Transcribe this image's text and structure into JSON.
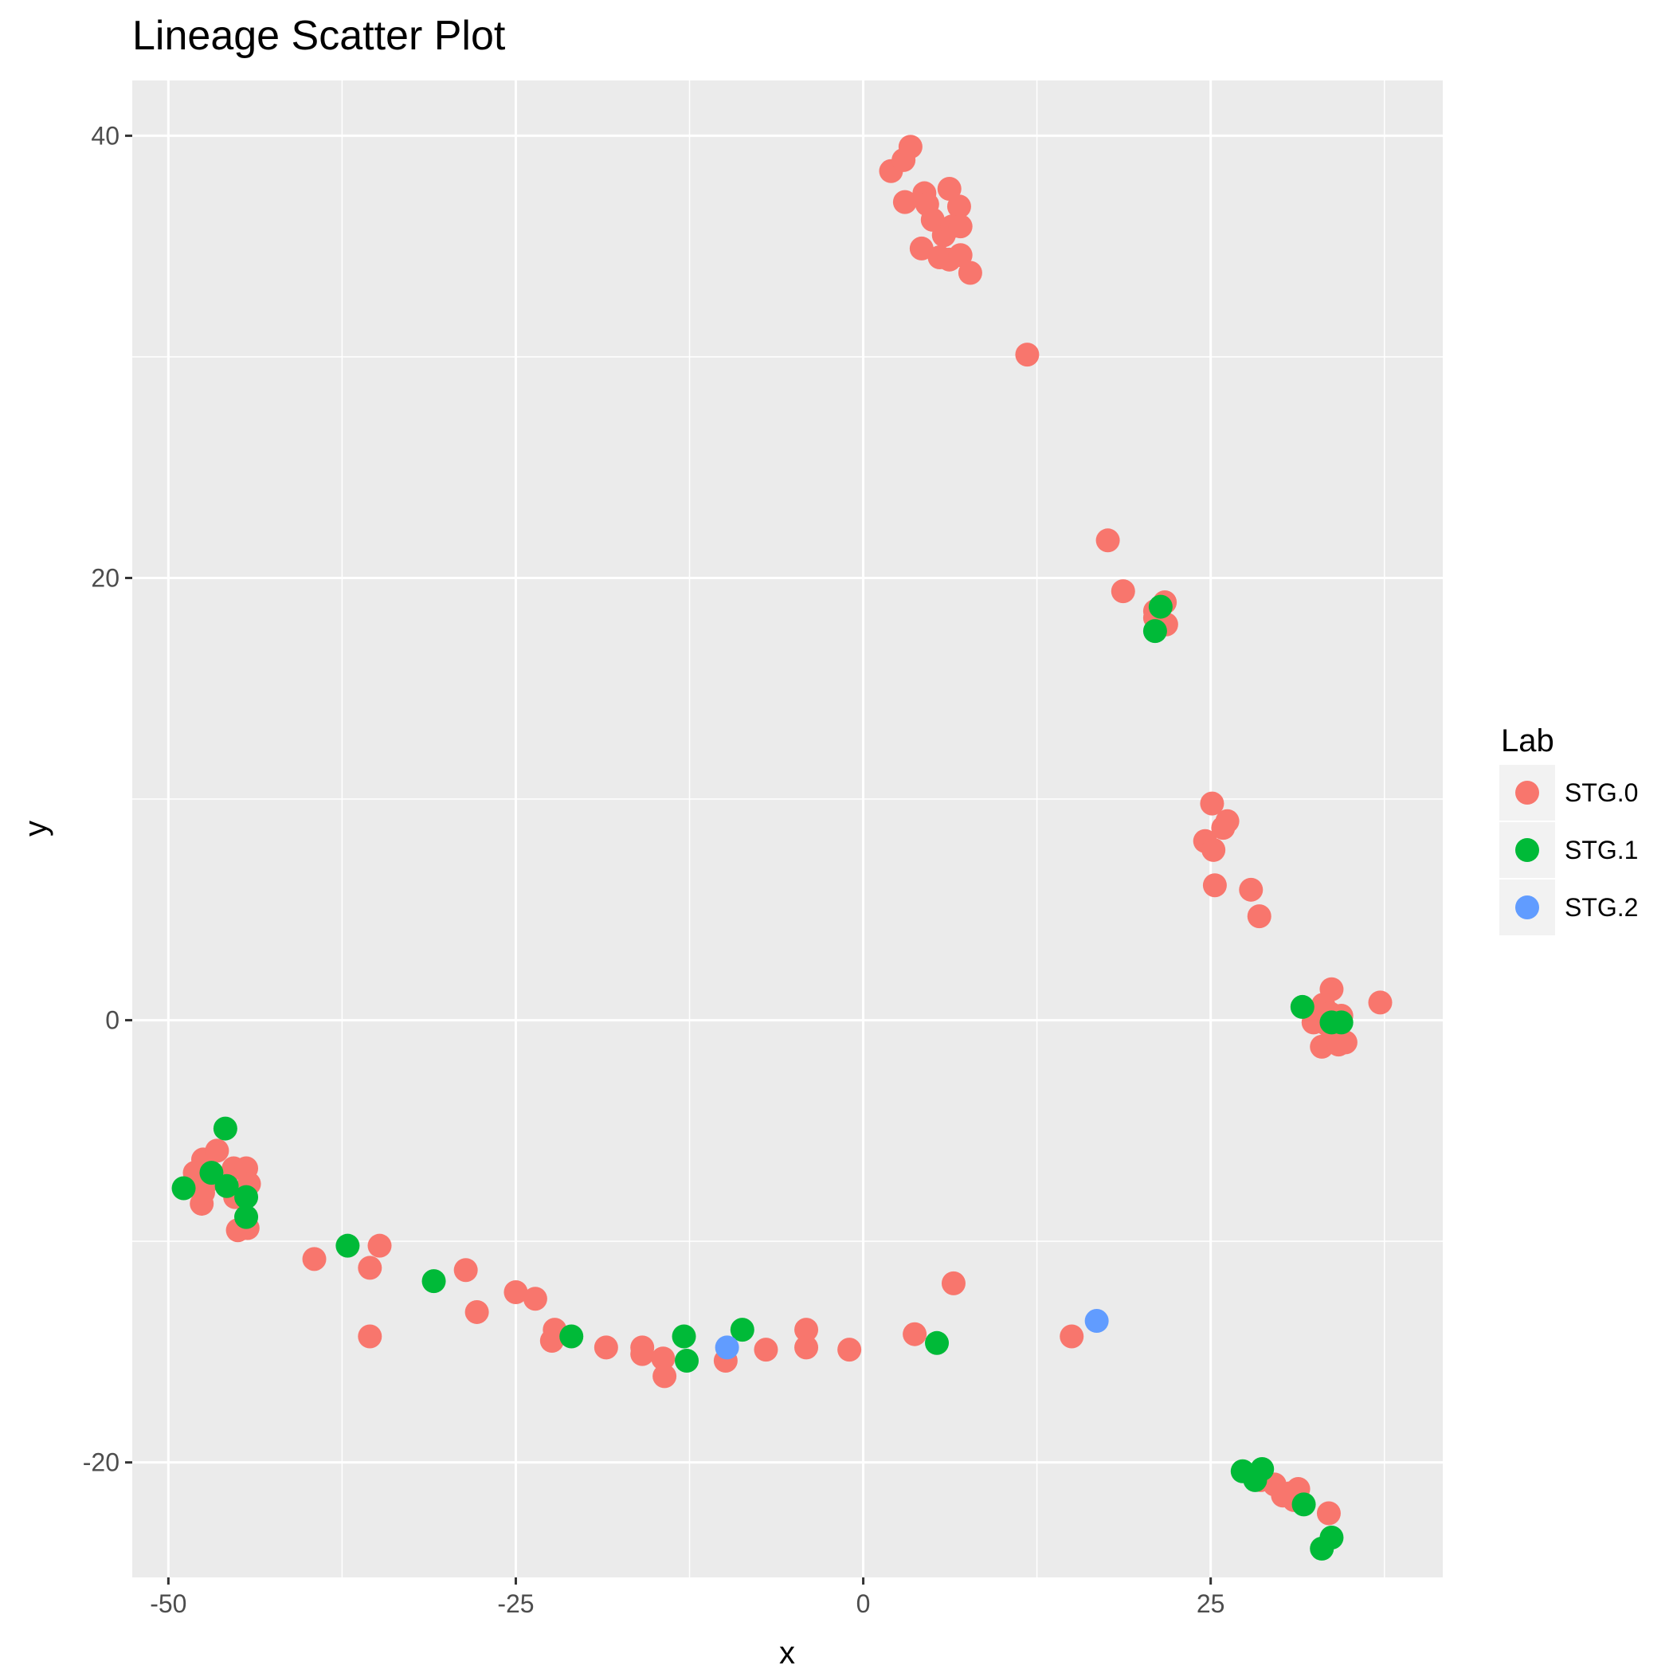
{
  "chart_data": {
    "type": "scatter",
    "title": "Lineage Scatter Plot",
    "xlabel": "x",
    "ylabel": "y",
    "xlim": [
      -52.6,
      41.7
    ],
    "ylim": [
      -25.2,
      42.5
    ],
    "x_ticks": [
      -50,
      -25,
      0,
      25
    ],
    "x_minor_ticks": [
      -37.5,
      -12.5,
      12.5,
      37.5
    ],
    "y_ticks": [
      -20,
      0,
      20,
      40
    ],
    "y_minor_ticks": [
      -10,
      10,
      30
    ],
    "grid": true,
    "legend": {
      "title": "Lab",
      "position": "right"
    },
    "series": [
      {
        "name": "STG.0",
        "color": "#F8766D",
        "points": [
          [
            2.0,
            38.4
          ],
          [
            2.9,
            38.9
          ],
          [
            3.4,
            39.5
          ],
          [
            3.0,
            37.0
          ],
          [
            4.4,
            37.4
          ],
          [
            4.6,
            36.9
          ],
          [
            5.0,
            36.2
          ],
          [
            6.2,
            37.6
          ],
          [
            6.9,
            36.8
          ],
          [
            5.8,
            35.5
          ],
          [
            6.4,
            35.9
          ],
          [
            7.0,
            35.9
          ],
          [
            4.2,
            34.9
          ],
          [
            5.5,
            34.5
          ],
          [
            6.2,
            34.4
          ],
          [
            7.0,
            34.6
          ],
          [
            7.7,
            33.8
          ],
          [
            11.8,
            30.1
          ],
          [
            17.6,
            21.7
          ],
          [
            18.7,
            19.4
          ],
          [
            21.0,
            18.5
          ],
          [
            21.0,
            18.2
          ],
          [
            21.8,
            17.9
          ],
          [
            21.7,
            18.9
          ],
          [
            25.1,
            9.8
          ],
          [
            26.2,
            9.0
          ],
          [
            24.6,
            8.1
          ],
          [
            25.2,
            7.7
          ],
          [
            25.9,
            8.7
          ],
          [
            25.3,
            6.1
          ],
          [
            27.9,
            5.9
          ],
          [
            28.5,
            4.7
          ],
          [
            33.7,
            1.4
          ],
          [
            32.4,
            -0.1
          ],
          [
            33.1,
            0.7
          ],
          [
            33.6,
            0.3
          ],
          [
            34.4,
            0.2
          ],
          [
            33.8,
            -0.4
          ],
          [
            33.4,
            -0.2
          ],
          [
            33.0,
            -1.2
          ],
          [
            34.2,
            -1.1
          ],
          [
            34.7,
            -1.0
          ],
          [
            37.2,
            0.8
          ],
          [
            -47.5,
            -6.3
          ],
          [
            -48.1,
            -6.9
          ],
          [
            -46.5,
            -5.9
          ],
          [
            -47.2,
            -7.3
          ],
          [
            -47.6,
            -8.3
          ],
          [
            -47.5,
            -7.8
          ],
          [
            -45.3,
            -6.7
          ],
          [
            -44.4,
            -6.7
          ],
          [
            -44.2,
            -7.4
          ],
          [
            -45.2,
            -8.0
          ],
          [
            -44.3,
            -9.4
          ],
          [
            -45.0,
            -9.5
          ],
          [
            -39.5,
            -10.8
          ],
          [
            -34.8,
            -10.2
          ],
          [
            -35.5,
            -11.2
          ],
          [
            -35.5,
            -14.3
          ],
          [
            -28.6,
            -11.3
          ],
          [
            -27.8,
            -13.2
          ],
          [
            -25.0,
            -12.3
          ],
          [
            -23.6,
            -12.6
          ],
          [
            -22.2,
            -14.0
          ],
          [
            -22.4,
            -14.5
          ],
          [
            -18.5,
            -14.8
          ],
          [
            -15.9,
            -14.8
          ],
          [
            -15.9,
            -15.1
          ],
          [
            -14.4,
            -15.3
          ],
          [
            -14.3,
            -16.1
          ],
          [
            -9.9,
            -15.4
          ],
          [
            -7.0,
            -14.9
          ],
          [
            -4.1,
            -14.0
          ],
          [
            -4.1,
            -14.8
          ],
          [
            -1.0,
            -14.9
          ],
          [
            3.7,
            -14.2
          ],
          [
            6.5,
            -11.9
          ],
          [
            15.0,
            -14.3
          ],
          [
            28.6,
            -20.8
          ],
          [
            29.6,
            -21.0
          ],
          [
            30.2,
            -21.5
          ],
          [
            30.7,
            -21.4
          ],
          [
            31.0,
            -21.7
          ],
          [
            31.3,
            -21.2
          ],
          [
            33.5,
            -22.3
          ]
        ]
      },
      {
        "name": "STG.1",
        "color": "#00BA38",
        "points": [
          [
            21.0,
            17.6
          ],
          [
            21.4,
            18.7
          ],
          [
            31.6,
            0.6
          ],
          [
            33.7,
            -0.1
          ],
          [
            34.4,
            -0.1
          ],
          [
            -48.9,
            -7.6
          ],
          [
            -46.9,
            -6.9
          ],
          [
            -45.9,
            -4.9
          ],
          [
            -45.8,
            -7.5
          ],
          [
            -44.4,
            -8.0
          ],
          [
            -44.4,
            -8.9
          ],
          [
            -37.1,
            -10.2
          ],
          [
            -30.9,
            -11.8
          ],
          [
            -21.0,
            -14.3
          ],
          [
            -12.9,
            -14.3
          ],
          [
            -12.7,
            -15.4
          ],
          [
            -8.7,
            -14.0
          ],
          [
            5.3,
            -14.6
          ],
          [
            27.3,
            -20.4
          ],
          [
            28.2,
            -20.8
          ],
          [
            28.7,
            -20.3
          ],
          [
            31.7,
            -21.9
          ],
          [
            33.0,
            -23.9
          ],
          [
            33.7,
            -23.4
          ]
        ]
      },
      {
        "name": "STG.2",
        "color": "#619CFF",
        "points": [
          [
            -9.8,
            -14.8
          ],
          [
            16.8,
            -13.6
          ]
        ]
      }
    ]
  }
}
